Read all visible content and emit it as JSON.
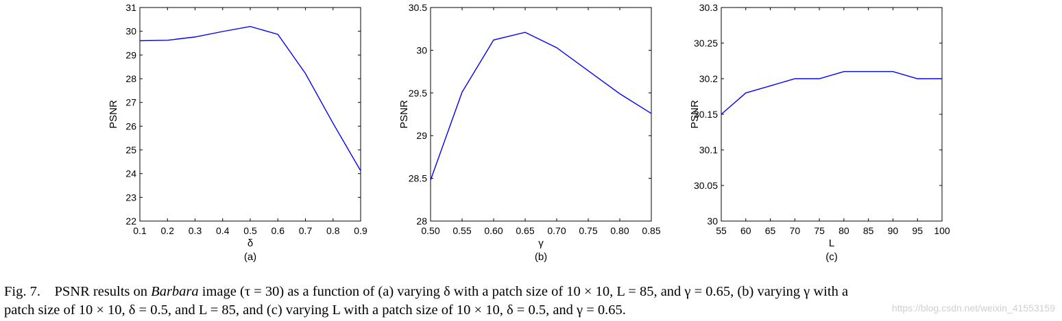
{
  "chart_data": [
    {
      "type": "line",
      "x": [
        0.1,
        0.2,
        0.3,
        0.4,
        0.5,
        0.6,
        0.7,
        0.8,
        0.9
      ],
      "x_tick_labels": [
        "0.1",
        "0.2",
        "0.3",
        "0.4",
        "0.5",
        "0.6",
        "0.7",
        "0.8",
        "0.9"
      ],
      "series": [
        {
          "name": "PSNR",
          "values": [
            29.6,
            29.62,
            29.76,
            29.99,
            30.2,
            29.87,
            28.22,
            26.12,
            24.12
          ]
        }
      ],
      "xlim": [
        0.1,
        0.9
      ],
      "ylim": [
        22,
        31
      ],
      "y_ticks": [
        "22",
        "23",
        "24",
        "25",
        "26",
        "27",
        "28",
        "29",
        "30",
        "31"
      ],
      "xlabel": "δ",
      "ylabel": "PSNR",
      "sublabel": "(a)",
      "line_color": "#0000ff"
    },
    {
      "type": "line",
      "x": [
        0.5,
        0.55,
        0.6,
        0.65,
        0.7,
        0.75,
        0.8,
        0.85
      ],
      "x_tick_labels": [
        "0.50",
        "0.55",
        "0.60",
        "0.65",
        "0.70",
        "0.75",
        "0.80",
        "0.85"
      ],
      "series": [
        {
          "name": "PSNR",
          "values": [
            28.48,
            29.51,
            30.12,
            30.21,
            30.03,
            29.76,
            29.49,
            29.26
          ]
        }
      ],
      "xlim": [
        0.5,
        0.85
      ],
      "ylim": [
        28,
        30.5
      ],
      "y_ticks": [
        "28",
        "28.5",
        "29",
        "29.5",
        "30",
        "30.5"
      ],
      "xlabel": "γ",
      "ylabel": "PSNR",
      "sublabel": "(b)",
      "line_color": "#0000ff"
    },
    {
      "type": "line",
      "x": [
        55,
        60,
        65,
        70,
        75,
        80,
        85,
        90,
        95,
        100
      ],
      "x_tick_labels": [
        "55",
        "60",
        "65",
        "70",
        "75",
        "80",
        "85",
        "90",
        "95",
        "100"
      ],
      "series": [
        {
          "name": "PSNR",
          "values": [
            30.15,
            30.18,
            30.19,
            30.2,
            30.2,
            30.21,
            30.21,
            30.21,
            30.2,
            30.2
          ]
        }
      ],
      "xlim": [
        55,
        100
      ],
      "ylim": [
        30,
        30.3
      ],
      "y_ticks": [
        "30",
        "30.05",
        "30.1",
        "30.15",
        "30.2",
        "30.25",
        "30.3"
      ],
      "xlabel": "L",
      "ylabel": "PSNR",
      "sublabel": "(c)",
      "line_color": "#0000ff"
    }
  ],
  "caption": {
    "fig_label": "Fig. 7.",
    "line1_a": "PSNR results on",
    "image_name": "Barbara",
    "line1_b": "image (τ = 30) as a function of (a) varying δ with a patch size of 10 × 10, L = 85, and γ = 0.65, (b) varying γ  with a",
    "line2": "patch size of 10 × 10, δ = 0.5, and L = 85, and (c) varying L with a patch size of 10 × 10, δ = 0.5, and γ = 0.65."
  },
  "watermark": "https://blog.csdn.net/weixin_41553159"
}
